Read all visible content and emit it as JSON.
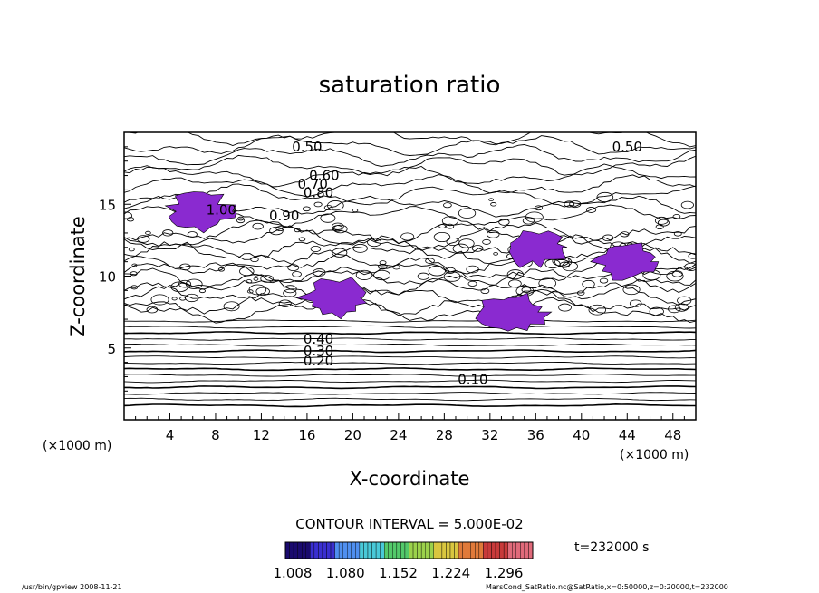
{
  "chart_data": {
    "type": "contour",
    "title": "saturation ratio",
    "xlabel": "X-coordinate",
    "ylabel": "Z-coordinate",
    "x_unit": "(×1000 m)",
    "z_unit": "(×1000 m)",
    "xlim": [
      0,
      50
    ],
    "ylim": [
      0,
      20
    ],
    "x_ticks": [
      4,
      8,
      12,
      16,
      20,
      24,
      28,
      32,
      36,
      40,
      44,
      48
    ],
    "y_ticks": [
      5,
      10,
      15
    ],
    "contour_labels": [
      "0.10",
      "0.20",
      "0.30",
      "0.40",
      "0.50",
      "0.60",
      "0.70",
      "0.80",
      "0.90",
      "1.00"
    ],
    "contour_interval": "CONTOUR INTERVAL = 5.000E-02",
    "time_label": "t=232000 s",
    "colorbar_ticks": [
      "1.008",
      "1.080",
      "1.152",
      "1.224",
      "1.296"
    ],
    "colorbar_colors": [
      "#1a0a6e",
      "#3a2fd0",
      "#4f8ff0",
      "#49c9d8",
      "#53c96a",
      "#9bd14b",
      "#d9c63f",
      "#e07a3a",
      "#c83a3a",
      "#e06a7a"
    ],
    "shading_color": "#8a2ad0",
    "supersaturated_regions": [
      {
        "x": 6.5,
        "z": 14.5
      },
      {
        "x": 18.5,
        "z": 8.5
      },
      {
        "x": 36,
        "z": 12
      },
      {
        "x": 44,
        "z": 11
      },
      {
        "x": 34,
        "z": 7.5
      }
    ]
  },
  "footer": {
    "left": "/usr/bin/gpview   2008-11-21",
    "right": "MarsCond_SatRatio.nc@SatRatio,x=0:50000,z=0:20000,t=232000"
  }
}
